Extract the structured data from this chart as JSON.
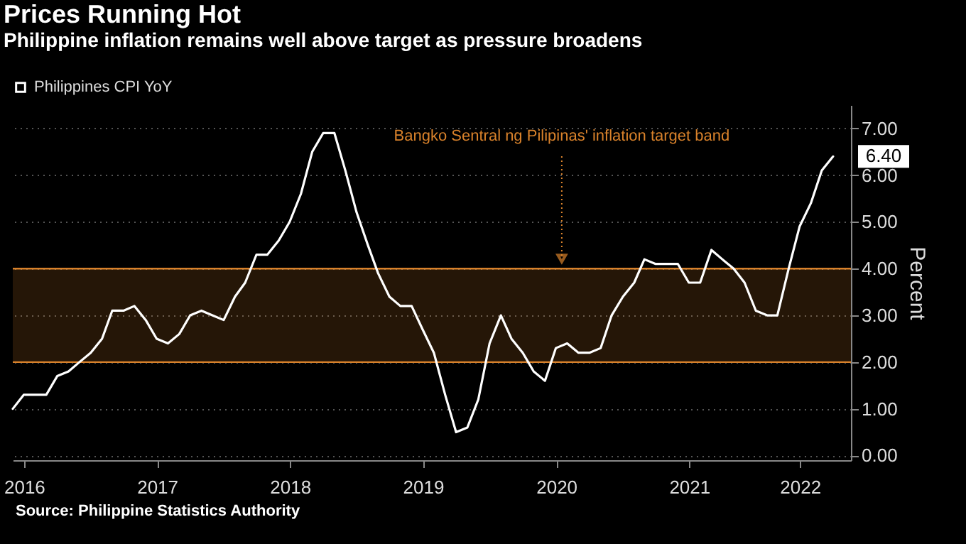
{
  "chart_data": {
    "type": "line",
    "title": "Prices Running Hot",
    "subtitle": "Philippine inflation remains well above target as pressure broadens",
    "ylabel": "Percent",
    "x": [
      "2016-05-31",
      "2016-06-30",
      "2016-07-31",
      "2016-08-31",
      "2016-09-30",
      "2016-10-31",
      "2016-11-30",
      "2016-12-31",
      "2017-01-31",
      "2017-02-28",
      "2017-03-31",
      "2017-04-30",
      "2017-05-31",
      "2017-06-30",
      "2017-07-31",
      "2017-08-31",
      "2017-09-30",
      "2017-10-31",
      "2017-11-30",
      "2017-12-31",
      "2018-01-31",
      "2018-02-28",
      "2018-03-31",
      "2018-04-30",
      "2018-05-31",
      "2018-06-30",
      "2018-07-31",
      "2018-08-31",
      "2018-09-30",
      "2018-10-31",
      "2018-11-30",
      "2018-12-31",
      "2019-01-31",
      "2019-02-28",
      "2019-03-31",
      "2019-04-30",
      "2019-05-31",
      "2019-06-30",
      "2019-07-31",
      "2019-08-31",
      "2019-09-30",
      "2019-10-31",
      "2019-11-30",
      "2019-12-31",
      "2020-01-31",
      "2020-02-29",
      "2020-03-31",
      "2020-04-30",
      "2020-05-31",
      "2020-06-30",
      "2020-07-31",
      "2020-08-31",
      "2020-09-30",
      "2020-10-31",
      "2020-11-30",
      "2020-12-31",
      "2021-01-31",
      "2021-02-28",
      "2021-03-31",
      "2021-04-30",
      "2021-05-31",
      "2021-06-30",
      "2021-07-31",
      "2021-08-31",
      "2021-09-30",
      "2021-10-31",
      "2021-11-30",
      "2021-12-31",
      "2022-01-31",
      "2022-02-28",
      "2022-03-31",
      "2022-04-30",
      "2022-05-31",
      "2022-06-30",
      "2022-07-31"
    ],
    "series": [
      {
        "name": "Philippines CPI YoY",
        "color": "#ffffff",
        "values": [
          1.0,
          1.3,
          1.3,
          1.3,
          1.7,
          1.8,
          2.0,
          2.2,
          2.5,
          3.1,
          3.1,
          3.2,
          2.9,
          2.5,
          2.4,
          2.6,
          3.0,
          3.1,
          3.0,
          2.9,
          3.4,
          3.7,
          4.3,
          4.3,
          4.6,
          5.0,
          5.6,
          6.5,
          6.9,
          6.9,
          6.1,
          5.2,
          4.5,
          3.9,
          3.4,
          3.2,
          3.2,
          2.7,
          2.2,
          1.3,
          0.5,
          0.6,
          1.2,
          2.4,
          3.0,
          2.5,
          2.2,
          1.8,
          1.6,
          2.3,
          2.4,
          2.2,
          2.2,
          2.3,
          3.0,
          3.4,
          3.7,
          4.2,
          4.1,
          4.1,
          4.1,
          3.7,
          3.7,
          4.4,
          4.2,
          4.0,
          3.7,
          3.1,
          3.0,
          3.0,
          4.0,
          4.9,
          5.4,
          6.1,
          6.4
        ],
        "value_labels": [
          null,
          null,
          null,
          null,
          null,
          null,
          null,
          null,
          null,
          null,
          null,
          null,
          null,
          null,
          null,
          null,
          null,
          null,
          null,
          null,
          null,
          null,
          null,
          null,
          null,
          null,
          null,
          null,
          null,
          null,
          null,
          null,
          null,
          null,
          null,
          null,
          null,
          null,
          null,
          null,
          null,
          null,
          null,
          null,
          null,
          null,
          null,
          null,
          null,
          null,
          null,
          null,
          null,
          null,
          null,
          null,
          null,
          null,
          null,
          null,
          null,
          null,
          null,
          null,
          null,
          null,
          null,
          null,
          null,
          null,
          null,
          null,
          null,
          null,
          "6.40"
        ]
      }
    ],
    "xlim": [
      "2016-05-31",
      "2022-09-18"
    ],
    "xticks": [
      {
        "value": "2016-07-01",
        "label": "2016"
      },
      {
        "value": "2017-07-01",
        "label": "2017"
      },
      {
        "value": "2018-07-01",
        "label": "2018"
      },
      {
        "value": "2019-07-01",
        "label": "2019"
      },
      {
        "value": "2020-07-01",
        "label": "2020"
      },
      {
        "value": "2021-07-01",
        "label": "2021"
      },
      {
        "value": "2022-05-01",
        "label": "2022"
      }
    ],
    "ylim": [
      -0.1,
      7.5
    ],
    "yticks": [
      {
        "value": 0,
        "label": "0.00"
      },
      {
        "value": 1,
        "label": "1.00"
      },
      {
        "value": 2,
        "label": "2.00"
      },
      {
        "value": 3,
        "label": "3.00"
      },
      {
        "value": 4,
        "label": "4.00"
      },
      {
        "value": 5,
        "label": "5.00"
      },
      {
        "value": 6,
        "label": "6.00"
      },
      {
        "value": 7,
        "label": "7.00"
      }
    ],
    "bands": [
      {
        "axis": "y",
        "from": 2,
        "to": 4,
        "label": "Bangko Sentral ng Pilipinas' inflation target band",
        "color": "#d9822b"
      }
    ],
    "annotations": [
      "Source: Philippine Statistics Authority"
    ],
    "grid": "y",
    "legend": "top left",
    "marker": "none",
    "line_style": "solid"
  }
}
